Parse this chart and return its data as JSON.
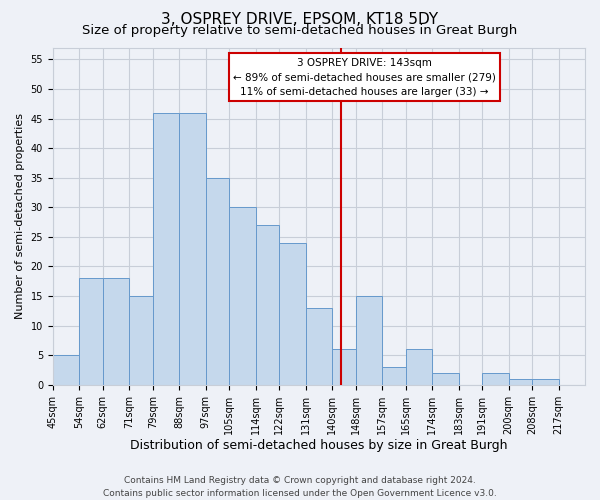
{
  "title": "3, OSPREY DRIVE, EPSOM, KT18 5DY",
  "subtitle": "Size of property relative to semi-detached houses in Great Burgh",
  "xlabel": "Distribution of semi-detached houses by size in Great Burgh",
  "ylabel": "Number of semi-detached properties",
  "bin_labels": [
    "45sqm",
    "54sqm",
    "62sqm",
    "71sqm",
    "79sqm",
    "88sqm",
    "97sqm",
    "105sqm",
    "114sqm",
    "122sqm",
    "131sqm",
    "140sqm",
    "148sqm",
    "157sqm",
    "165sqm",
    "174sqm",
    "183sqm",
    "191sqm",
    "200sqm",
    "208sqm",
    "217sqm"
  ],
  "bin_edges": [
    45,
    54,
    62,
    71,
    79,
    88,
    97,
    105,
    114,
    122,
    131,
    140,
    148,
    157,
    165,
    174,
    183,
    191,
    200,
    208,
    217
  ],
  "counts": [
    5,
    18,
    18,
    15,
    46,
    46,
    35,
    30,
    27,
    24,
    13,
    6,
    15,
    3,
    6,
    2,
    0,
    2,
    1,
    1
  ],
  "bar_facecolor": "#c5d8ec",
  "bar_edgecolor": "#6699cc",
  "grid_color": "#c8ced8",
  "background_color": "#eef1f7",
  "vline_x": 143,
  "vline_color": "#cc0000",
  "annotation_title": "3 OSPREY DRIVE: 143sqm",
  "annotation_line1": "← 89% of semi-detached houses are smaller (279)",
  "annotation_line2": "11% of semi-detached houses are larger (33) →",
  "annotation_box_color": "#cc0000",
  "ylim": [
    0,
    57
  ],
  "yticks": [
    0,
    5,
    10,
    15,
    20,
    25,
    30,
    35,
    40,
    45,
    50,
    55
  ],
  "footer1": "Contains HM Land Registry data © Crown copyright and database right 2024.",
  "footer2": "Contains public sector information licensed under the Open Government Licence v3.0.",
  "title_fontsize": 11,
  "subtitle_fontsize": 9.5,
  "xlabel_fontsize": 9,
  "ylabel_fontsize": 8,
  "tick_fontsize": 7,
  "footer_fontsize": 6.5,
  "annot_fontsize": 7.5
}
